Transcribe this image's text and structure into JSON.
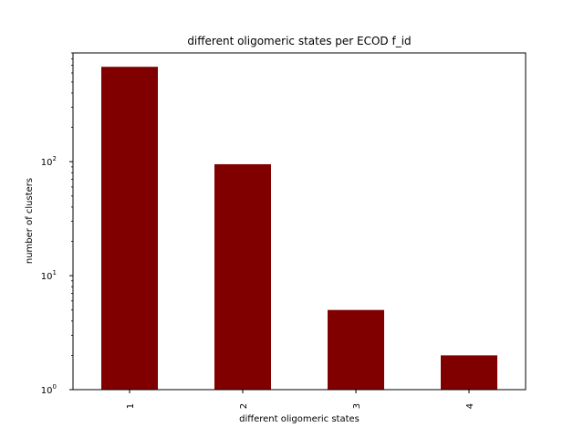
{
  "chart_data": {
    "type": "bar",
    "title": "different oligomeric states per ECOD f_id",
    "xlabel": "different oligomeric states",
    "ylabel": "number of clusters",
    "categories": [
      "1",
      "2",
      "3",
      "4"
    ],
    "values": [
      680,
      95,
      5,
      2
    ],
    "yscale": "log",
    "ylim": [
      1,
      900
    ],
    "y_ticks": [
      {
        "base": "10",
        "exp": "0",
        "value": 1
      },
      {
        "base": "10",
        "exp": "1",
        "value": 10
      },
      {
        "base": "10",
        "exp": "2",
        "value": 100
      }
    ],
    "bar_color": "#800000",
    "grid": false,
    "legend": "none"
  }
}
